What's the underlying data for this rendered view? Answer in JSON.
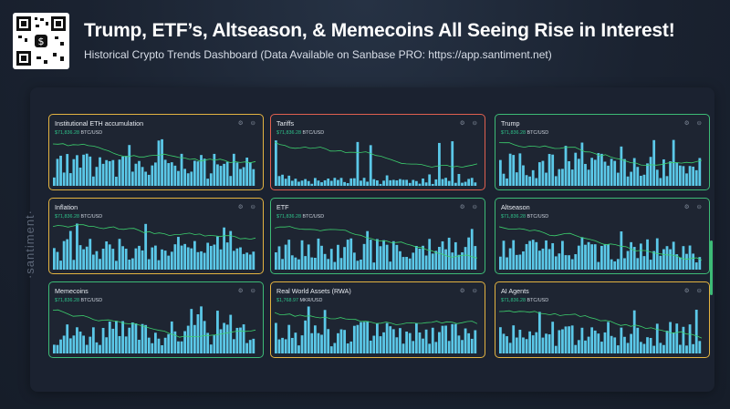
{
  "header": {
    "title": "Trump, ETF’s, Altseason, & Memecoins All Seeing Rise in Interest!",
    "subtitle": "Historical Crypto Trends Dashboard (Data Available on Sanbase PRO: https://app.santiment.net)"
  },
  "watermark": "·santiment·",
  "colors": {
    "bar": "#5bc8e8",
    "line": "#3ccf6d",
    "border_yellow": "#e3b341",
    "border_red": "#e0604f",
    "border_green": "#3dbb76"
  },
  "panels": [
    {
      "title": "Institutional ETH accumulation",
      "price": "$71,836.28",
      "pair": "BTC/USD",
      "border": "yellow",
      "icons": [
        "settings-icon",
        "delete-icon"
      ]
    },
    {
      "title": "Tariffs",
      "price": "$71,836.28",
      "pair": "BTC/USD",
      "border": "red",
      "icons": [
        "settings-icon",
        "delete-icon"
      ]
    },
    {
      "title": "Trump",
      "price": "$71,836.28",
      "pair": "BTC/USD",
      "border": "green",
      "icons": [
        "settings-icon",
        "delete-icon"
      ]
    },
    {
      "title": "Inflation",
      "price": "$71,836.28",
      "pair": "BTC/USD",
      "border": "yellow",
      "icons": [
        "settings-icon",
        "delete-icon"
      ]
    },
    {
      "title": "ETF",
      "price": "$71,836.28",
      "pair": "BTC/USD",
      "border": "green",
      "icons": [
        "settings-icon",
        "delete-icon"
      ]
    },
    {
      "title": "Altseason",
      "price": "$71,836.28",
      "pair": "BTC/USD",
      "border": "green",
      "icons": [
        "settings-icon",
        "delete-icon"
      ]
    },
    {
      "title": "Memecoins",
      "price": "$71,836.28",
      "pair": "BTC/USD",
      "border": "green",
      "icons": [
        "settings-icon",
        "delete-icon"
      ]
    },
    {
      "title": "Real World Assets (RWA)",
      "price": "$1,768.97",
      "pair": "MKR/USD",
      "border": "yellow",
      "icons": [
        "settings-icon",
        "delete-icon"
      ]
    },
    {
      "title": "AI Agents",
      "price": "$71,836.28",
      "pair": "BTC/USD",
      "border": "yellow",
      "icons": [
        "settings-icon",
        "delete-icon"
      ]
    }
  ]
}
